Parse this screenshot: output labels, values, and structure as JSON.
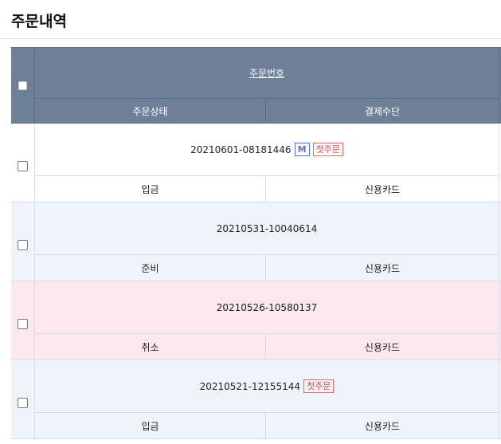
{
  "page": {
    "title": "주문내역"
  },
  "table": {
    "headers": {
      "order_no": "주문번호",
      "status": "주문상태",
      "payment": "결제수단"
    },
    "badges": {
      "mobile": "M",
      "first_order": "첫주문"
    },
    "colors": {
      "header": "#6e7f98",
      "alt_row": "#eff3fa",
      "cancelled_row": "#fce8ef"
    },
    "rows": [
      {
        "order_no": "20210601-08181446",
        "mobile": true,
        "first_order": true,
        "status": "입금",
        "payment": "신용카드"
      },
      {
        "order_no": "20210531-10040614",
        "mobile": false,
        "first_order": false,
        "status": "준비",
        "payment": "신용카드"
      },
      {
        "order_no": "20210526-10580137",
        "mobile": false,
        "first_order": false,
        "status": "취소",
        "payment": "신용카드"
      },
      {
        "order_no": "20210521-12155144",
        "mobile": false,
        "first_order": true,
        "status": "입금",
        "payment": "신용카드"
      }
    ]
  }
}
